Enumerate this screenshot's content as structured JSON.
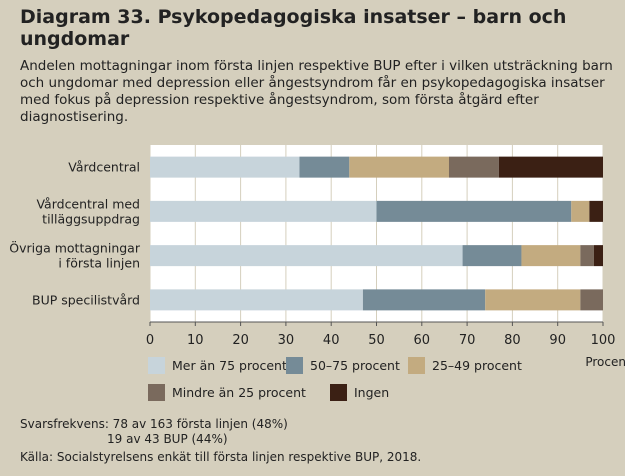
{
  "title": "Diagram 33. Psykopedagogiska insatser – barn och ungdomar",
  "subtitle": "Andelen mottagningar inom första linjen respektive BUP efter i vilken utsträckning barn och ungdomar med depression eller ångestsyndrom får en psykopedagogiska insatser med fokus på depression respektive ångestsyndrom, som första åtgärd efter diagnostisering.",
  "footnotes": {
    "response_1": "Svarsfrekvens:  78 av 163 första linjen (48%)",
    "response_2": "19 av 43 BUP (44%)",
    "source": "Källa: Socialstyrelsens enkät till första linjen respektive BUP, 2018."
  },
  "colors": {
    "background": "#d5cfbd",
    "plot_background": "#ffffff",
    "series": [
      "#c7d4db",
      "#758b97",
      "#c3ab80",
      "#7a6a5d",
      "#3b2014"
    ]
  },
  "chart_data": {
    "type": "bar",
    "orientation": "horizontal",
    "stacked": true,
    "categories": [
      "Vårdcentral",
      "Vårdcentral med tilläggsuppdrag",
      "Övriga mottagningar i första linjen",
      "BUP specilistvård"
    ],
    "category_label_lines": [
      [
        "Vårdcentral"
      ],
      [
        "Vårdcentral med",
        "tilläggsuppdrag"
      ],
      [
        "Övriga mottagningar",
        "i första linjen"
      ],
      [
        "BUP specilistvård"
      ]
    ],
    "series": [
      {
        "name": "Mer än 75 procent",
        "values": [
          33,
          50,
          69,
          47
        ]
      },
      {
        "name": "50–75 procent",
        "values": [
          11,
          43,
          13,
          27
        ]
      },
      {
        "name": "25–49 procent",
        "values": [
          22,
          4,
          13,
          21
        ]
      },
      {
        "name": "Mindre än 25 procent",
        "values": [
          11,
          0,
          3,
          5
        ]
      },
      {
        "name": "Ingen",
        "values": [
          23,
          3,
          2,
          0
        ]
      }
    ],
    "xlim": [
      0,
      100
    ],
    "xticks": [
      0,
      10,
      20,
      30,
      40,
      50,
      60,
      70,
      80,
      90,
      100
    ],
    "xlabel": "Procent",
    "ylabel": "",
    "grid": "vertical",
    "legend_placement": "bottom"
  }
}
